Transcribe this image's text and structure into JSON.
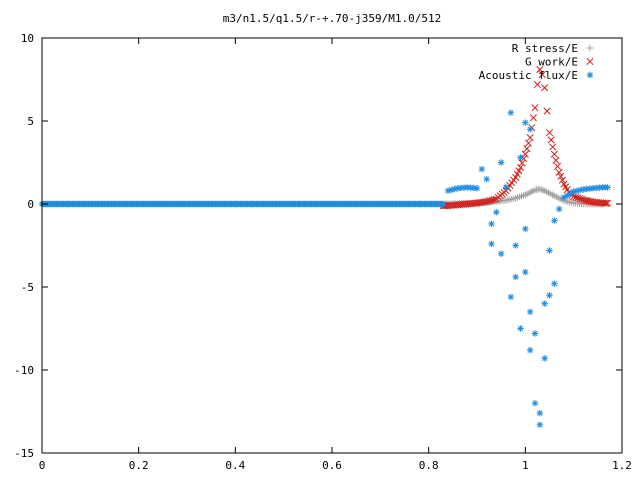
{
  "chart_data": {
    "type": "scatter",
    "title": "m3/n1.5/q1.5/r-+.70-j359/M1.0/512",
    "xlabel": "",
    "ylabel": "",
    "xlim": [
      0,
      1.2
    ],
    "ylim": [
      -15,
      10
    ],
    "x_ticks": [
      "0",
      "0.2",
      "0.4",
      "0.6",
      "0.8",
      "1",
      "1.2"
    ],
    "y_ticks": [
      "10",
      "5",
      "0",
      "-5",
      "-10",
      "-15"
    ],
    "legend_position": "top-right",
    "grid": false,
    "series": [
      {
        "name": "R stress/E",
        "color": "#a0a0a0",
        "marker": "plus",
        "points": [
          [
            0.0,
            0.0
          ],
          [
            0.1,
            0.0
          ],
          [
            0.2,
            0.0
          ],
          [
            0.3,
            0.0
          ],
          [
            0.4,
            0.0
          ],
          [
            0.5,
            0.0
          ],
          [
            0.6,
            0.0
          ],
          [
            0.7,
            0.0
          ],
          [
            0.8,
            0.0
          ],
          [
            0.83,
            0.0
          ],
          [
            0.84,
            0.02
          ],
          [
            0.86,
            0.03
          ],
          [
            0.88,
            0.05
          ],
          [
            0.9,
            0.07
          ],
          [
            0.92,
            0.1
          ],
          [
            0.94,
            0.15
          ],
          [
            0.96,
            0.22
          ],
          [
            0.98,
            0.35
          ],
          [
            1.0,
            0.55
          ],
          [
            1.02,
            0.85
          ],
          [
            1.03,
            0.9
          ],
          [
            1.04,
            0.8
          ],
          [
            1.06,
            0.5
          ],
          [
            1.08,
            0.2
          ],
          [
            1.1,
            0.05
          ],
          [
            1.12,
            0.0
          ],
          [
            1.14,
            -0.02
          ],
          [
            1.16,
            -0.02
          ]
        ]
      },
      {
        "name": "G work/E",
        "color": "#d0201a",
        "marker": "cross",
        "points": [
          [
            0.83,
            -0.1
          ],
          [
            0.84,
            -0.1
          ],
          [
            0.86,
            -0.05
          ],
          [
            0.88,
            0.0
          ],
          [
            0.9,
            0.05
          ],
          [
            0.92,
            0.15
          ],
          [
            0.94,
            0.3
          ],
          [
            0.96,
            0.8
          ],
          [
            0.98,
            1.6
          ],
          [
            0.99,
            2.2
          ],
          [
            1.0,
            3.0
          ],
          [
            1.01,
            4.0
          ],
          [
            1.02,
            5.8
          ],
          [
            1.025,
            7.2
          ],
          [
            1.03,
            8.1
          ],
          [
            1.035,
            7.8
          ],
          [
            1.04,
            7.0
          ],
          [
            1.045,
            5.6
          ],
          [
            1.05,
            4.3
          ],
          [
            1.06,
            3.0
          ],
          [
            1.07,
            1.9
          ],
          [
            1.08,
            1.2
          ],
          [
            1.09,
            0.7
          ],
          [
            1.1,
            0.45
          ],
          [
            1.12,
            0.25
          ],
          [
            1.14,
            0.12
          ],
          [
            1.16,
            0.06
          ],
          [
            1.17,
            0.04
          ]
        ]
      },
      {
        "name": "Acoustic flux/E",
        "color": "#1f8ce0",
        "marker": "star",
        "points": [
          [
            0.0,
            0.0
          ],
          [
            0.83,
            1.2
          ],
          [
            0.83,
            -0.5
          ],
          [
            0.84,
            0.8
          ],
          [
            0.86,
            0.95
          ],
          [
            0.88,
            1.0
          ],
          [
            0.9,
            0.95
          ],
          [
            0.91,
            2.1
          ],
          [
            0.92,
            1.5
          ],
          [
            0.93,
            -1.2
          ],
          [
            0.93,
            -2.4
          ],
          [
            0.94,
            -0.5
          ],
          [
            0.95,
            2.5
          ],
          [
            0.95,
            -3.0
          ],
          [
            0.96,
            1.0
          ],
          [
            0.97,
            5.5
          ],
          [
            0.97,
            -5.6
          ],
          [
            0.98,
            -2.5
          ],
          [
            0.98,
            -4.4
          ],
          [
            0.99,
            2.8
          ],
          [
            0.99,
            -7.5
          ],
          [
            1.0,
            4.9
          ],
          [
            1.0,
            -4.1
          ],
          [
            1.0,
            -1.5
          ],
          [
            1.01,
            4.5
          ],
          [
            1.01,
            -8.8
          ],
          [
            1.01,
            -6.5
          ],
          [
            1.02,
            -12.0
          ],
          [
            1.02,
            -7.8
          ],
          [
            1.03,
            -13.3
          ],
          [
            1.03,
            -12.6
          ],
          [
            1.04,
            -9.3
          ],
          [
            1.04,
            -6.0
          ],
          [
            1.05,
            -2.8
          ],
          [
            1.05,
            -5.5
          ],
          [
            1.06,
            -4.8
          ],
          [
            1.06,
            -1.0
          ],
          [
            1.07,
            -0.3
          ],
          [
            1.08,
            0.4
          ],
          [
            1.09,
            0.6
          ],
          [
            1.1,
            0.75
          ],
          [
            1.12,
            0.88
          ],
          [
            1.14,
            0.95
          ],
          [
            1.16,
            1.0
          ],
          [
            1.17,
            1.0
          ]
        ]
      }
    ]
  }
}
